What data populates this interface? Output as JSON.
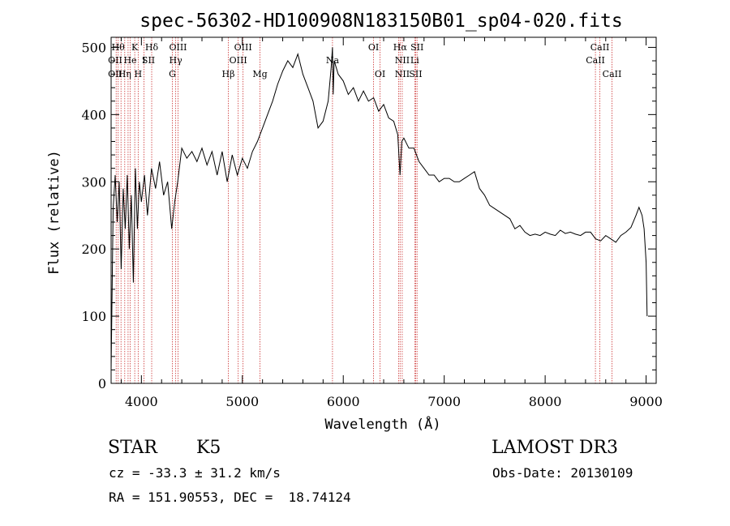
{
  "chart_data": {
    "type": "line",
    "title": "spec-56302-HD100908N183150B01_sp04-020.fits",
    "xlabel": "Wavelength (Å)",
    "ylabel": "Flux (relative)",
    "xlim": [
      3700,
      9100
    ],
    "ylim": [
      0,
      515
    ],
    "xticks": [
      4000,
      5000,
      6000,
      7000,
      8000,
      9000
    ],
    "yticks": [
      0,
      100,
      200,
      300,
      400,
      500
    ],
    "grid": false,
    "colors": {
      "line": "#000000",
      "marker": "#cc3333"
    },
    "series": [
      {
        "x": [
          3700,
          3720,
          3740,
          3760,
          3780,
          3800,
          3820,
          3840,
          3860,
          3880,
          3900,
          3920,
          3940,
          3960,
          3980,
          4000,
          4030,
          4060,
          4100,
          4140,
          4180,
          4220,
          4260,
          4300,
          4330,
          4360,
          4400,
          4450,
          4500,
          4550,
          4600,
          4650,
          4700,
          4750,
          4800,
          4850,
          4900,
          4950,
          5000,
          5050,
          5100,
          5150,
          5200,
          5250,
          5300,
          5350,
          5400,
          5450,
          5500,
          5550,
          5600,
          5650,
          5700,
          5750,
          5800,
          5850,
          5880,
          5893,
          5900,
          5910,
          5950,
          6000,
          6050,
          6100,
          6150,
          6200,
          6250,
          6300,
          6350,
          6400,
          6450,
          6500,
          6540,
          6562,
          6580,
          6600,
          6650,
          6700,
          6750,
          6800,
          6850,
          6900,
          6950,
          7000,
          7050,
          7100,
          7150,
          7200,
          7250,
          7300,
          7350,
          7400,
          7450,
          7500,
          7550,
          7600,
          7650,
          7700,
          7750,
          7800,
          7850,
          7900,
          7950,
          8000,
          8050,
          8100,
          8150,
          8200,
          8250,
          8300,
          8350,
          8400,
          8450,
          8500,
          8550,
          8600,
          8650,
          8700,
          8750,
          8800,
          8850,
          8900,
          8930,
          8960,
          8980,
          9000,
          9010
        ],
        "y": [
          20,
          260,
          310,
          240,
          300,
          170,
          290,
          230,
          310,
          200,
          280,
          150,
          320,
          230,
          300,
          270,
          310,
          250,
          320,
          290,
          330,
          280,
          300,
          230,
          270,
          300,
          350,
          335,
          345,
          330,
          350,
          325,
          345,
          310,
          345,
          300,
          340,
          310,
          335,
          320,
          345,
          360,
          380,
          400,
          420,
          445,
          465,
          480,
          470,
          490,
          460,
          440,
          420,
          380,
          390,
          420,
          470,
          500,
          430,
          480,
          460,
          450,
          430,
          440,
          420,
          435,
          420,
          425,
          405,
          415,
          395,
          390,
          370,
          310,
          360,
          365,
          350,
          350,
          330,
          320,
          310,
          310,
          300,
          305,
          305,
          300,
          300,
          305,
          310,
          315,
          290,
          280,
          265,
          260,
          255,
          250,
          245,
          230,
          235,
          225,
          220,
          222,
          220,
          225,
          222,
          220,
          228,
          223,
          225,
          222,
          220,
          225,
          225,
          215,
          212,
          220,
          215,
          210,
          220,
          225,
          232,
          250,
          262,
          250,
          230,
          180,
          100
        ]
      }
    ],
    "lines": [
      {
        "x": 3750,
        "rows": []
      },
      {
        "x": 3770,
        "rows": []
      },
      {
        "x": 3798,
        "rows": []
      },
      {
        "x": 3835,
        "rows": []
      },
      {
        "x": 3868,
        "rows": []
      },
      {
        "x": 3889,
        "rows": []
      },
      {
        "x": 3934,
        "rows": []
      },
      {
        "x": 3968,
        "rows": []
      },
      {
        "x": 4026,
        "rows": []
      },
      {
        "x": 4102,
        "rows": []
      },
      {
        "x": 4307,
        "rows": []
      },
      {
        "x": 4340,
        "rows": []
      },
      {
        "x": 4363,
        "rows": []
      },
      {
        "x": 4861,
        "rows": []
      },
      {
        "x": 4959,
        "rows": []
      },
      {
        "x": 5007,
        "rows": []
      },
      {
        "x": 5175,
        "rows": []
      },
      {
        "x": 5893,
        "rows": []
      },
      {
        "x": 6300,
        "rows": []
      },
      {
        "x": 6364,
        "rows": []
      },
      {
        "x": 6548,
        "rows": []
      },
      {
        "x": 6563,
        "rows": []
      },
      {
        "x": 6584,
        "rows": []
      },
      {
        "x": 6708,
        "rows": []
      },
      {
        "x": 6717,
        "rows": []
      },
      {
        "x": 6731,
        "rows": []
      },
      {
        "x": 8498,
        "rows": []
      },
      {
        "x": 8542,
        "rows": []
      },
      {
        "x": 8662,
        "rows": []
      }
    ],
    "line_labels": [
      {
        "text": "Hθ",
        "x": 3770,
        "row": 1
      },
      {
        "text": "K",
        "x": 3934,
        "row": 1
      },
      {
        "text": "Hδ",
        "x": 4102,
        "row": 1
      },
      {
        "text": "OIII",
        "x": 4363,
        "row": 1
      },
      {
        "text": "OIII",
        "x": 5007,
        "row": 1
      },
      {
        "text": "OI",
        "x": 6300,
        "row": 1
      },
      {
        "text": "Hα",
        "x": 6563,
        "row": 1
      },
      {
        "text": "SII",
        "x": 6731,
        "row": 1
      },
      {
        "text": "CaII",
        "x": 8542,
        "row": 1
      },
      {
        "text": "OII",
        "x": 3740,
        "row": 2
      },
      {
        "text": "He",
        "x": 3889,
        "row": 2
      },
      {
        "text": "I",
        "x": 4026,
        "row": 2
      },
      {
        "text": "SII",
        "x": 4070,
        "row": 2
      },
      {
        "text": "Hγ",
        "x": 4340,
        "row": 2
      },
      {
        "text": "OIII",
        "x": 4959,
        "row": 2
      },
      {
        "text": "Na",
        "x": 5893,
        "row": 2
      },
      {
        "text": "NII",
        "x": 6584,
        "row": 2
      },
      {
        "text": "Li",
        "x": 6708,
        "row": 2
      },
      {
        "text": "CaII",
        "x": 8498,
        "row": 2
      },
      {
        "text": "OII",
        "x": 3740,
        "row": 3
      },
      {
        "text": "Hη",
        "x": 3835,
        "row": 3
      },
      {
        "text": "H",
        "x": 3968,
        "row": 3
      },
      {
        "text": "G",
        "x": 4307,
        "row": 3
      },
      {
        "text": "Hβ",
        "x": 4861,
        "row": 3
      },
      {
        "text": "Mg",
        "x": 5175,
        "row": 3
      },
      {
        "text": "OI",
        "x": 6364,
        "row": 3
      },
      {
        "text": "NII",
        "x": 6584,
        "row": 3
      },
      {
        "text": "SII",
        "x": 6717,
        "row": 3
      },
      {
        "text": "CaII",
        "x": 8662,
        "row": 3
      }
    ]
  },
  "info": {
    "class": "STAR",
    "subclass": "K5",
    "survey": "LAMOST DR3",
    "cz": "cz = -33.3 ± 31.2 km/s",
    "obs_date": "Obs-Date: 20130109",
    "radec": "RA = 151.90553, DEC =  18.74124"
  }
}
